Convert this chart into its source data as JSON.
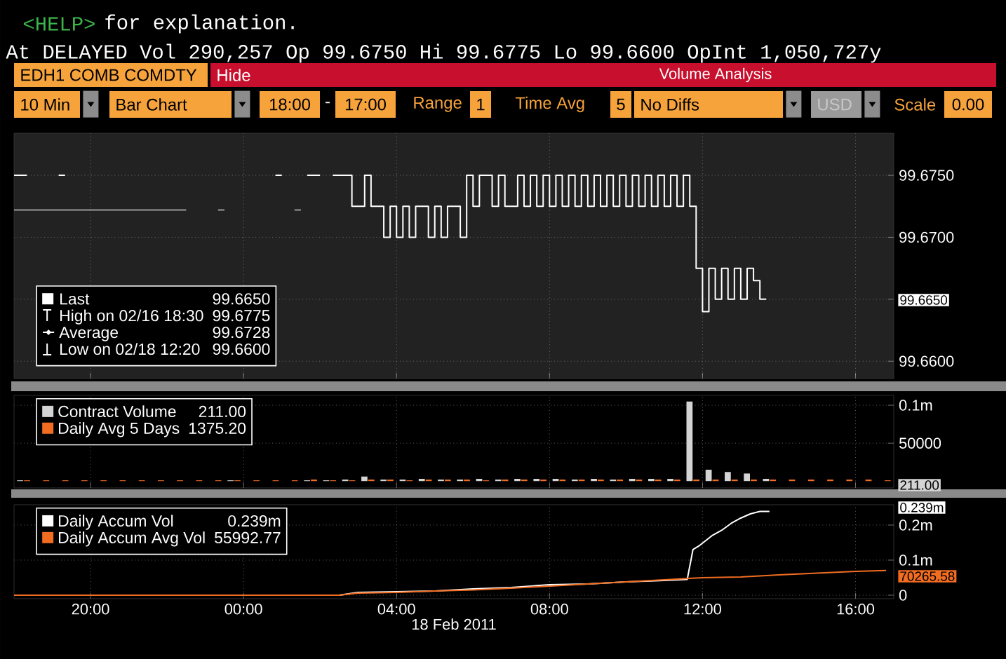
{
  "chart_data": [
    {
      "type": "step",
      "title": "Volume Analysis",
      "annotations": [
        "<HELP>",
        "for explanation.",
        "At DELAYED Vol 290,257 Op 99.6750 Hi 99.6775 Lo 99.6600 OpInt 1,050,727y",
        "EDH1 COMB COMDTY",
        "Hide",
        "10 Min",
        "Bar Chart",
        "18:00",
        "-",
        "17:00",
        "Range",
        "1",
        "Time Avg",
        "5",
        "No Diffs",
        "USD",
        "Scale",
        "0.00",
        "99.6650",
        "High on 02/16 18:30",
        "99.6775",
        "Average",
        "99.6728",
        "Low on 02/18 12:20",
        "99.6600",
        "99.6650"
      ],
      "series": [
        {
          "name": "Last",
          "color": "#ffffff",
          "x": [
            "2011-02-17T18:00",
            "2011-02-17T18:20",
            "2011-02-17T18:50",
            "2011-02-17T19:10",
            "2011-02-17T19:20",
            "2011-02-17T22:00",
            "2011-02-18T00:50",
            "2011-02-18T01:00",
            "2011-02-18T01:20",
            "2011-02-18T01:40",
            "2011-02-18T02:00",
            "2011-02-18T02:10",
            "2011-02-18T02:20",
            "2011-02-18T02:40",
            "2011-02-18T02:50",
            "2011-02-18T03:00",
            "2011-02-18T03:10",
            "2011-02-18T03:20",
            "2011-02-18T03:30",
            "2011-02-18T03:40",
            "2011-02-18T03:50",
            "2011-02-18T04:00",
            "2011-02-18T04:10",
            "2011-02-18T04:20",
            "2011-02-18T04:30",
            "2011-02-18T04:40",
            "2011-02-18T04:50",
            "2011-02-18T05:00",
            "2011-02-18T05:10",
            "2011-02-18T05:20",
            "2011-02-18T05:30",
            "2011-02-18T05:40",
            "2011-02-18T05:50",
            "2011-02-18T06:00",
            "2011-02-18T06:10",
            "2011-02-18T06:20",
            "2011-02-18T06:30",
            "2011-02-18T06:40",
            "2011-02-18T06:50",
            "2011-02-18T07:00",
            "2011-02-18T07:10",
            "2011-02-18T07:20",
            "2011-02-18T07:30",
            "2011-02-18T07:40",
            "2011-02-18T07:50",
            "2011-02-18T08:00",
            "2011-02-18T08:10",
            "2011-02-18T08:20",
            "2011-02-18T08:30",
            "2011-02-18T08:40",
            "2011-02-18T08:50",
            "2011-02-18T09:00",
            "2011-02-18T09:10",
            "2011-02-18T09:20",
            "2011-02-18T09:30",
            "2011-02-18T09:40",
            "2011-02-18T09:50",
            "2011-02-18T10:00",
            "2011-02-18T10:10",
            "2011-02-18T10:20",
            "2011-02-18T10:30",
            "2011-02-18T10:40",
            "2011-02-18T10:50",
            "2011-02-18T11:00",
            "2011-02-18T11:10",
            "2011-02-18T11:20",
            "2011-02-18T11:30",
            "2011-02-18T11:40",
            "2011-02-18T11:50",
            "2011-02-18T12:00",
            "2011-02-18T12:10",
            "2011-02-18T12:20",
            "2011-02-18T12:30",
            "2011-02-18T12:40",
            "2011-02-18T12:50",
            "2011-02-18T13:00",
            "2011-02-18T13:10",
            "2011-02-18T13:20",
            "2011-02-18T13:30",
            "2011-02-18T13:40"
          ],
          "values": [
            99.675,
            99.675,
            null,
            99.675,
            99.675,
            null,
            99.675,
            99.675,
            null,
            99.675,
            99.675,
            null,
            99.675,
            99.675,
            99.6725,
            99.6725,
            99.675,
            99.6725,
            99.6725,
            99.67,
            99.6725,
            99.67,
            99.6725,
            99.67,
            99.6725,
            99.6725,
            99.67,
            99.6725,
            99.67,
            99.6725,
            99.6725,
            99.67,
            99.675,
            99.6725,
            99.675,
            99.675,
            99.6725,
            99.675,
            99.6725,
            99.6725,
            99.675,
            99.6725,
            99.675,
            99.6725,
            99.675,
            99.6725,
            99.675,
            99.6725,
            99.675,
            99.6725,
            99.675,
            99.6725,
            99.675,
            99.6725,
            99.675,
            99.6725,
            99.675,
            99.6725,
            99.675,
            99.6725,
            99.675,
            99.6725,
            99.675,
            99.6725,
            99.675,
            99.6725,
            99.675,
            99.6725,
            99.6675,
            99.664,
            99.6675,
            99.665,
            99.6675,
            99.665,
            99.6675,
            99.665,
            99.6675,
            99.6665,
            99.665,
            99.665
          ]
        },
        {
          "color": "#9a9a9a",
          "x": [
            "2011-02-17T18:00",
            "2011-02-17T22:30",
            "2011-02-17T23:00",
            "2011-02-17T23:20",
            "2011-02-17T23:30",
            "2011-02-18T00:20",
            "2011-02-18T01:20",
            "2011-02-18T01:30"
          ],
          "values": [
            99.6722,
            99.6722,
            null,
            99.6722,
            99.6722,
            null,
            99.6722,
            99.6722
          ]
        }
      ],
      "xlim": [
        "2011-02-17T18:00",
        "2011-02-18T17:00"
      ],
      "xticks": [
        {
          "value": "2011-02-17T20:00",
          "label": null
        },
        {
          "value": "2011-02-18T00:00",
          "label": null
        },
        {
          "value": "2011-02-18T04:00",
          "label": null
        },
        {
          "value": "2011-02-18T08:00",
          "label": null
        },
        {
          "value": "2011-02-18T12:00",
          "label": null
        },
        {
          "value": "2011-02-18T16:00",
          "label": null
        }
      ],
      "ylim": [
        99.6586,
        99.6784
      ],
      "yticks": [
        {
          "value": 99.66,
          "label": "99.6600"
        },
        {
          "value": 99.665,
          "label": null
        },
        {
          "value": 99.67,
          "label": "99.6700"
        },
        {
          "value": 99.675,
          "label": "99.6750"
        }
      ],
      "tick_labels": "y",
      "grid": true,
      "legend": "bottom left"
    },
    {
      "type": "bar",
      "annotations": [
        "211.00",
        "1375.20",
        "211.00"
      ],
      "x": [
        "2011-02-17T18:15",
        "2011-02-17T18:45",
        "2011-02-17T19:15",
        "2011-02-17T19:45",
        "2011-02-17T20:15",
        "2011-02-17T20:45",
        "2011-02-17T21:15",
        "2011-02-17T21:45",
        "2011-02-17T22:15",
        "2011-02-17T22:45",
        "2011-02-17T23:15",
        "2011-02-17T23:45",
        "2011-02-18T00:15",
        "2011-02-18T00:45",
        "2011-02-18T01:15",
        "2011-02-18T01:45",
        "2011-02-18T02:15",
        "2011-02-18T02:45",
        "2011-02-18T03:15",
        "2011-02-18T03:45",
        "2011-02-18T04:15",
        "2011-02-18T04:45",
        "2011-02-18T05:15",
        "2011-02-18T05:45",
        "2011-02-18T06:15",
        "2011-02-18T06:45",
        "2011-02-18T07:15",
        "2011-02-18T07:45",
        "2011-02-18T08:15",
        "2011-02-18T08:45",
        "2011-02-18T09:15",
        "2011-02-18T09:45",
        "2011-02-18T10:15",
        "2011-02-18T10:45",
        "2011-02-18T11:15",
        "2011-02-18T11:45",
        "2011-02-18T12:15",
        "2011-02-18T12:45",
        "2011-02-18T13:15",
        "2011-02-18T13:45",
        "2011-02-18T14:15",
        "2011-02-18T14:45",
        "2011-02-18T15:15",
        "2011-02-18T15:45",
        "2011-02-18T16:15",
        "2011-02-18T16:45"
      ],
      "series": [
        {
          "name": "Contract Volume",
          "color": "#d4d4d4",
          "values": [
            1000,
            0,
            0,
            0,
            0,
            0,
            0,
            0,
            0,
            0,
            0,
            1000,
            0,
            0,
            0,
            1000,
            1000,
            2000,
            6000,
            2000,
            2000,
            3000,
            2000,
            2000,
            3000,
            2000,
            3000,
            3000,
            3000,
            2000,
            3000,
            2000,
            3000,
            3000,
            3000,
            105000,
            15000,
            12000,
            10000,
            3000,
            null,
            null,
            null,
            null,
            null,
            null
          ]
        },
        {
          "name": "Daily Avg 5 Days",
          "color": "#f26d21",
          "values": [
            1000,
            1000,
            1000,
            1000,
            1000,
            1000,
            1000,
            1000,
            1000,
            1000,
            1000,
            1000,
            1000,
            1000,
            1000,
            2000,
            1000,
            1000,
            2000,
            2000,
            1000,
            2000,
            2000,
            2000,
            1000,
            2000,
            2000,
            2000,
            2000,
            2000,
            2000,
            2000,
            2000,
            2000,
            2000,
            2000,
            2000,
            2000,
            2000,
            2000,
            2000,
            2000,
            2000,
            2000,
            2000,
            1000
          ]
        }
      ],
      "xlim": [
        "2011-02-17T18:00",
        "2011-02-18T17:00"
      ],
      "xticks": [
        {
          "value": "2011-02-17T20:00",
          "label": null
        },
        {
          "value": "2011-02-18T00:00",
          "label": null
        },
        {
          "value": "2011-02-18T04:00",
          "label": null
        },
        {
          "value": "2011-02-18T08:00",
          "label": null
        },
        {
          "value": "2011-02-18T12:00",
          "label": null
        },
        {
          "value": "2011-02-18T16:00",
          "label": null
        }
      ],
      "ylim": [
        -9000,
        113000
      ],
      "yticks": [
        50000,
        {
          "value": 100000,
          "label": "0.1m"
        }
      ],
      "tick_labels": "y",
      "grid": true,
      "legend": "top left"
    },
    {
      "type": "line",
      "xlabel": "18 Feb 2011",
      "annotations": [
        "0.239m",
        "55992.77",
        "0.239m",
        "70265.58"
      ],
      "series": [
        {
          "name": "Daily Accum Vol",
          "color": "#ffffff",
          "x": [
            "2011-02-17T18:00",
            "2011-02-18T02:30",
            "2011-02-18T03:00",
            "2011-02-18T04:00",
            "2011-02-18T05:00",
            "2011-02-18T06:00",
            "2011-02-18T07:00",
            "2011-02-18T08:00",
            "2011-02-18T09:00",
            "2011-02-18T10:00",
            "2011-02-18T11:00",
            "2011-02-18T11:36",
            "2011-02-18T11:45",
            "2011-02-18T11:54",
            "2011-02-18T12:15",
            "2011-02-18T12:30",
            "2011-02-18T12:45",
            "2011-02-18T13:00",
            "2011-02-18T13:15",
            "2011-02-18T13:30",
            "2011-02-18T13:45"
          ],
          "values": [
            0,
            0,
            8000,
            10000,
            12000,
            18000,
            22000,
            30000,
            32000,
            38000,
            42000,
            45000,
            130000,
            140000,
            170000,
            185000,
            205000,
            220000,
            232000,
            239000,
            239000
          ]
        },
        {
          "name": "Daily Accum Avg Vol",
          "color": "#f26d21",
          "x": [
            "2011-02-17T18:00",
            "2011-02-18T02:30",
            "2011-02-18T03:00",
            "2011-02-18T04:00",
            "2011-02-18T05:00",
            "2011-02-18T06:00",
            "2011-02-18T07:00",
            "2011-02-18T08:00",
            "2011-02-18T09:00",
            "2011-02-18T10:00",
            "2011-02-18T11:00",
            "2011-02-18T12:00",
            "2011-02-18T13:00",
            "2011-02-18T14:00",
            "2011-02-18T15:00",
            "2011-02-18T16:00",
            "2011-02-18T16:48"
          ],
          "values": [
            0,
            0,
            6000,
            8000,
            12000,
            15000,
            20000,
            26000,
            32000,
            38000,
            44000,
            50000,
            52000,
            58000,
            63000,
            68000,
            70265.58
          ]
        }
      ],
      "xlim": [
        "2011-02-17T18:00",
        "2011-02-18T17:00"
      ],
      "xticks": [
        {
          "value": "2011-02-17T20:00",
          "label": "20:00"
        },
        {
          "value": "2011-02-18T00:00",
          "label": "00:00"
        },
        {
          "value": "2011-02-18T04:00",
          "label": "04:00"
        },
        {
          "value": "2011-02-18T08:00",
          "label": "08:00"
        },
        {
          "value": "2011-02-18T12:00",
          "label": "12:00"
        },
        {
          "value": "2011-02-18T16:00",
          "label": "16:00"
        }
      ],
      "ylim": [
        -10000,
        258000
      ],
      "yticks": [
        0,
        {
          "value": 100000,
          "label": "0.1m"
        },
        {
          "value": 200000,
          "label": "0.2m"
        }
      ],
      "grid": true,
      "legend": "top left"
    }
  ]
}
